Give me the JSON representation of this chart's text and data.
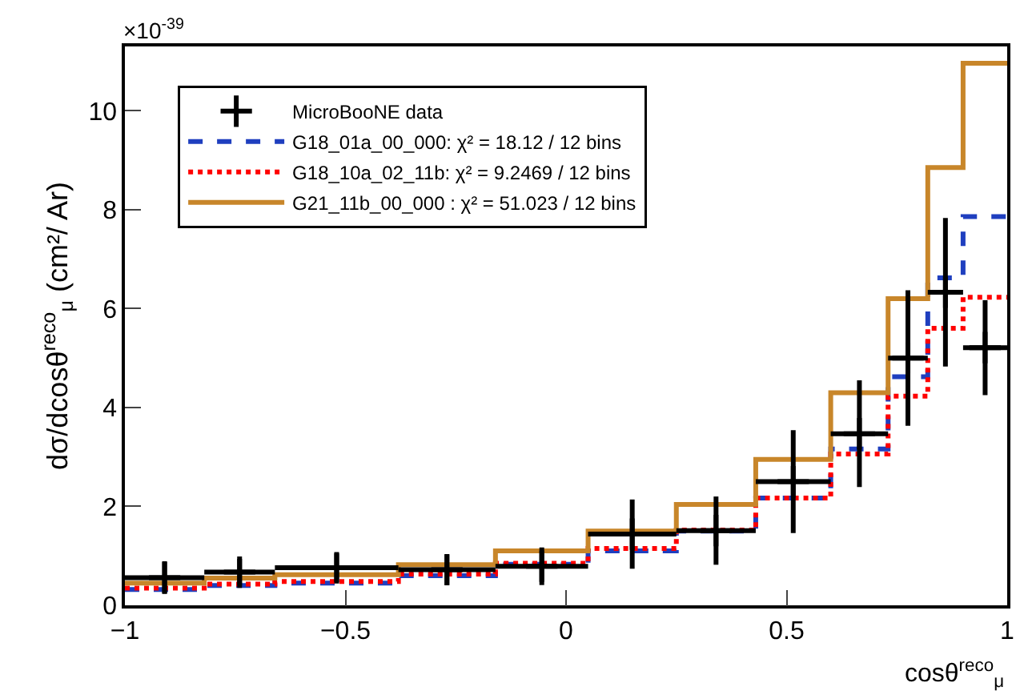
{
  "chart_data": {
    "type": "histogram",
    "ylabel": "dσ/dcosθ$^{reco}$$_{μ}$ (cm²/ Ar)",
    "xlabel": "cosθ$^{reco}$$_{μ}$",
    "annotations": [
      "×10$^{-39}$"
    ],
    "xlim": [
      -1,
      1
    ],
    "xticks": [
      {
        "value": -1,
        "label": "−1"
      },
      {
        "value": -0.5,
        "label": "−0.5"
      },
      0,
      0.5,
      1
    ],
    "ylim": [
      0,
      11.3
    ],
    "yticks": [
      0,
      2,
      4,
      6,
      8,
      10
    ],
    "bins": [
      -1,
      -0.82,
      -0.66,
      -0.38,
      -0.16,
      0.05,
      0.25,
      0.43,
      0.6,
      0.73,
      0.82,
      0.9,
      1
    ],
    "legend": "top left",
    "grid": false,
    "series": [
      {
        "name": "MicroBooNE data",
        "type": "scatter",
        "marker": "cross",
        "color": "#000000",
        "x": [
          -0.91,
          -0.74,
          -0.52,
          -0.27,
          -0.055,
          0.15,
          0.34,
          0.515,
          0.665,
          0.775,
          0.86,
          0.95
        ],
        "values": [
          0.56,
          0.67,
          0.76,
          0.72,
          0.79,
          1.44,
          1.51,
          2.5,
          3.47,
          5.0,
          6.33,
          5.21
        ],
        "errors": [
          0.33,
          0.27,
          0.29,
          0.31,
          0.38,
          0.7,
          0.69,
          1.04,
          1.08,
          1.37,
          1.5,
          0.96
        ],
        "xerrors": [
          0.09,
          0.08,
          0.14,
          0.11,
          0.105,
          0.1,
          0.09,
          0.085,
          0.065,
          0.045,
          0.04,
          0.05
        ]
      },
      {
        "name": "G18_01a_00_000: χ² = 18.12 / 12 bins",
        "color": "#1f3fbf",
        "line_style": "dashed",
        "values": [
          0.32,
          0.4,
          0.45,
          0.6,
          0.83,
          1.1,
          1.5,
          2.17,
          3.16,
          4.62,
          6.62,
          7.86
        ]
      },
      {
        "name": "G18_10a_02_11b: χ² = 9.2469 / 12 bins",
        "color": "#ff0000",
        "line_style": "dotted",
        "values": [
          0.35,
          0.43,
          0.48,
          0.63,
          0.85,
          1.15,
          1.52,
          2.17,
          3.06,
          4.23,
          5.6,
          6.23
        ]
      },
      {
        "name": "G21_11b_00_000 : χ² = 51.023 / 12 bins",
        "color": "#c8862a",
        "line_style": "solid",
        "values": [
          0.45,
          0.55,
          0.62,
          0.82,
          1.1,
          1.5,
          2.04,
          2.95,
          4.3,
          6.2,
          8.85,
          10.96
        ]
      }
    ]
  }
}
